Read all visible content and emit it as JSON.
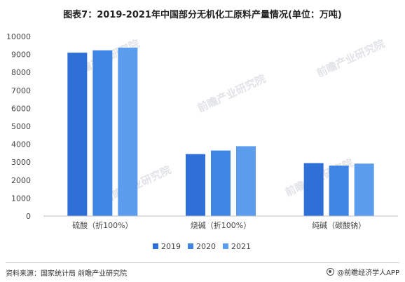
{
  "title": "图表7：2019-2021年中国部分无机化工原料产量情况(单位：万吨)",
  "source": "资料来源：国家统计局 前瞻产业研究院",
  "brand": "@前瞻经济学人APP",
  "watermark": "前瞻产业研究院",
  "colors": {
    "2019": "#2e6fd8",
    "2020": "#3f86e3",
    "2021": "#5b9cec"
  },
  "chart_data": {
    "type": "bar",
    "categories": [
      "硫酸（折100%）",
      "烧碱（折100%）",
      "纯碱（碳酸钠）"
    ],
    "series": [
      {
        "name": "2019",
        "values": [
          9100,
          3450,
          2950
        ]
      },
      {
        "name": "2020",
        "values": [
          9230,
          3650,
          2810
        ]
      },
      {
        "name": "2021",
        "values": [
          9380,
          3890,
          2920
        ]
      }
    ],
    "ylim": [
      0,
      10000
    ],
    "yticks": [
      0,
      1000,
      2000,
      3000,
      4000,
      5000,
      6000,
      7000,
      8000,
      9000,
      10000
    ],
    "xlabel": "",
    "ylabel": "",
    "grid": false,
    "legend": "bottom"
  }
}
